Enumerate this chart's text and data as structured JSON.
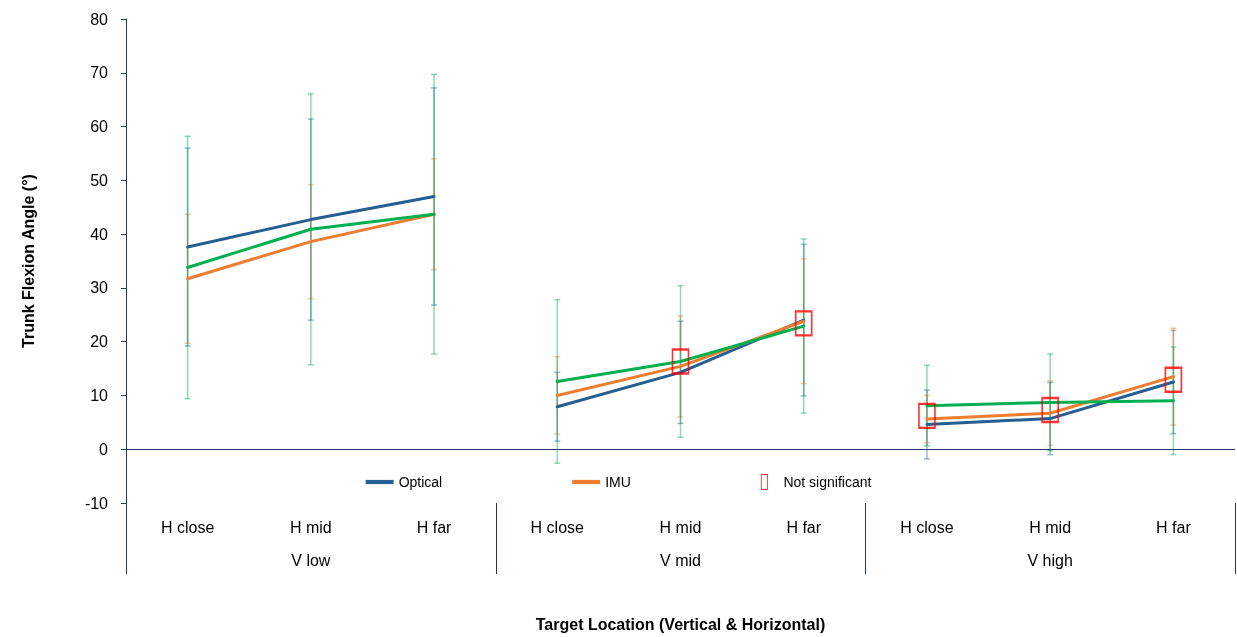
{
  "chart_data": {
    "type": "line",
    "xlabel": "Target Location (Vertical & Horizontal)",
    "ylabel": "Trunk Flexion Angle (°)",
    "categories": [
      "H close",
      "H mid",
      "H far",
      "H close",
      "H mid",
      "H far",
      "H close",
      "H mid",
      "H far"
    ],
    "annotations": [
      "V low",
      "V mid",
      "V high"
    ],
    "ylim": [
      -10,
      80
    ],
    "yticks": [
      -10,
      0,
      10,
      20,
      30,
      40,
      50,
      60,
      70,
      80
    ],
    "ref_lines": [
      {
        "axis": "y",
        "value": 0,
        "color": "#1f3864"
      }
    ],
    "grid": false,
    "legend": "bottom",
    "marker": "none",
    "line_style": "solid",
    "series": [
      {
        "name": "Optical",
        "color": "#255e91",
        "values": [
          37.6,
          42.7,
          47.0,
          7.9,
          14.3,
          24.0,
          4.6,
          5.7,
          12.5
        ],
        "errors": [
          18.4,
          18.7,
          20.2,
          6.4,
          9.5,
          14.1,
          6.4,
          6.7,
          9.6
        ]
      },
      {
        "name": "IMU",
        "color": "#ed7d31",
        "values": [
          31.7,
          38.6,
          43.7,
          10.0,
          15.4,
          23.8,
          5.6,
          6.7,
          13.5
        ],
        "errors": [
          12.0,
          10.6,
          10.3,
          7.2,
          9.4,
          11.6,
          4.4,
          6.0,
          9.0
        ]
      },
      {
        "color": "#00b050",
        "values": [
          33.8,
          40.9,
          43.7,
          12.6,
          16.3,
          22.9,
          8.1,
          8.7,
          9.0
        ],
        "errors": [
          24.4,
          25.2,
          26.0,
          15.2,
          14.1,
          16.2,
          7.5,
          9.0,
          10.0
        ]
      },
      {
        "name": "Not significant",
        "type": "scatter",
        "marker": "square",
        "color": "#ff0000",
        "values": [
          null,
          null,
          null,
          null,
          16.3,
          23.4,
          6.2,
          7.3,
          12.9
        ]
      }
    ]
  }
}
